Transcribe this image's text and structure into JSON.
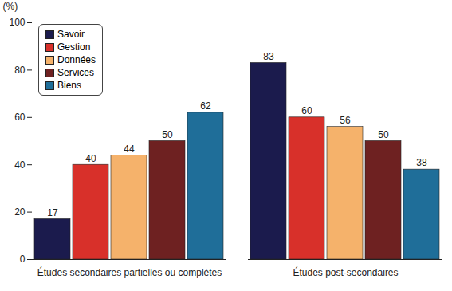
{
  "chart_data": {
    "type": "bar",
    "categories": [
      "Études secondaires partielles ou complètes",
      "Études post-secondaires"
    ],
    "series": [
      {
        "name": "Savoir",
        "color": "#1b1b4d",
        "values": [
          17,
          83
        ]
      },
      {
        "name": "Gestion",
        "color": "#d8302a",
        "values": [
          40,
          60
        ]
      },
      {
        "name": "Données",
        "color": "#f5b26b",
        "values": [
          44,
          56
        ]
      },
      {
        "name": "Services",
        "color": "#6e2121",
        "values": [
          50,
          50
        ]
      },
      {
        "name": "Biens",
        "color": "#1f6e99",
        "values": [
          62,
          38
        ]
      }
    ],
    "y_label": "(%)",
    "ylim": [
      0,
      100
    ],
    "yticks": [
      0,
      20,
      40,
      60,
      80,
      100
    ],
    "grid": false,
    "legend": "top-left",
    "data_labels": true
  }
}
